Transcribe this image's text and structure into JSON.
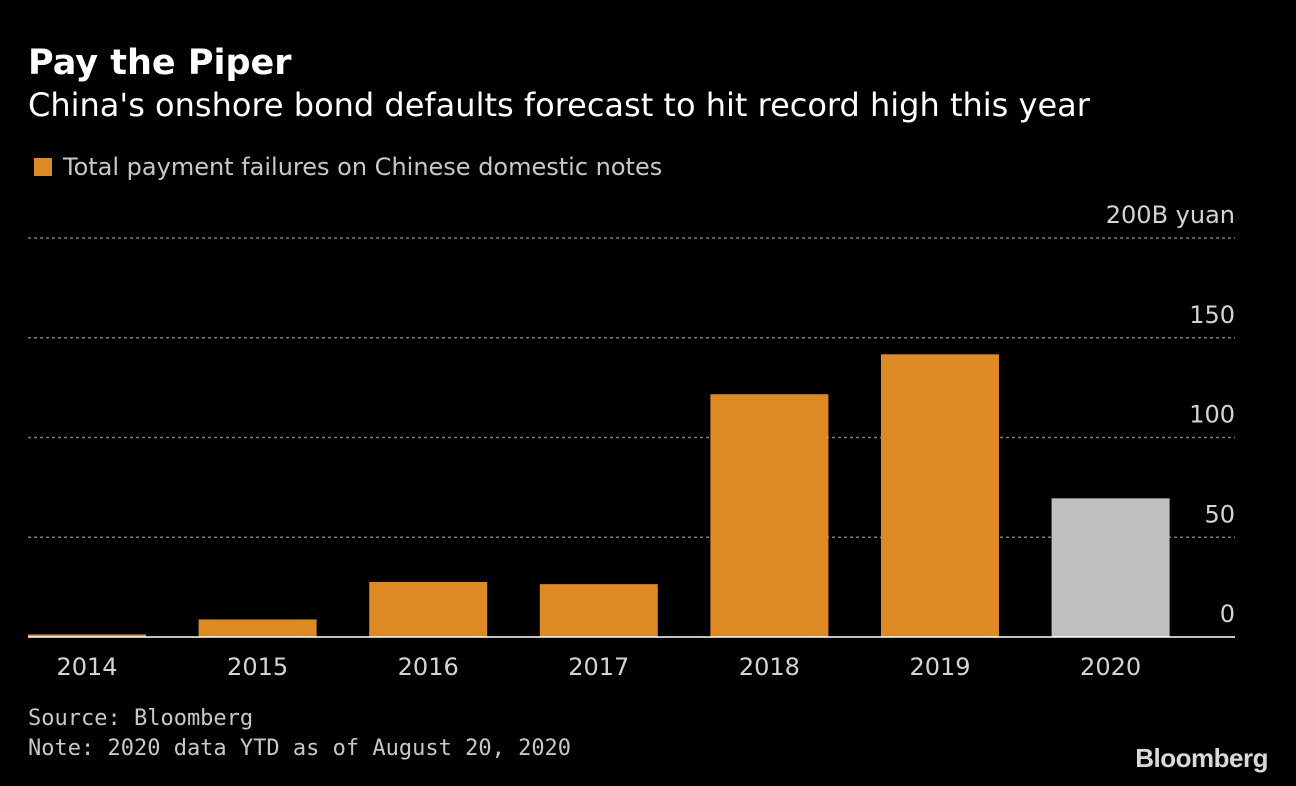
{
  "header": {
    "title": "Pay the Piper",
    "subtitle": "China's onshore bond defaults forecast to hit record high this year"
  },
  "legend": {
    "label": "Total payment failures on Chinese domestic notes",
    "color": "#dd8a25"
  },
  "footer": {
    "source": "Source: Bloomberg",
    "note": "Note: 2020 data YTD as of August 20, 2020",
    "brand": "Bloomberg"
  },
  "colors": {
    "bar": "#dd8a25",
    "highlight_bar": "#c0c0c0",
    "grid": "#7a7a7a",
    "baseline": "#ffffff",
    "tick_text": "#d4d4d4"
  },
  "chart_data": {
    "type": "bar",
    "categories": [
      "2014",
      "2015",
      "2016",
      "2017",
      "2018",
      "2019",
      "2020"
    ],
    "values": [
      1.3,
      8.8,
      27.6,
      26.5,
      121.7,
      141.7,
      69.5
    ],
    "bar_colors": [
      "#dd8a25",
      "#dd8a25",
      "#dd8a25",
      "#dd8a25",
      "#dd8a25",
      "#dd8a25",
      "#c0c0c0"
    ],
    "ylim": [
      0,
      200
    ],
    "yticks": [
      0,
      50,
      100,
      150,
      200
    ],
    "ytick_labels": [
      "0",
      "50",
      "100",
      "150",
      "200B yuan"
    ],
    "grid": true,
    "ylabel": "",
    "xlabel": ""
  }
}
